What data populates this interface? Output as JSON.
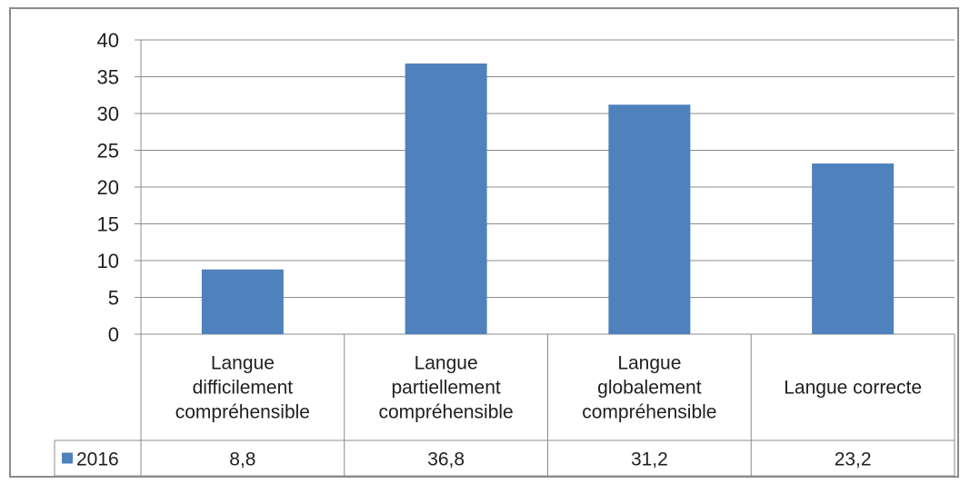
{
  "chart_data": {
    "type": "bar",
    "categories": [
      [
        "Langue",
        "difficilement",
        "compréhensible"
      ],
      [
        "Langue",
        "partiellement",
        "compréhensible"
      ],
      [
        "Langue",
        "globalement",
        "compréhensible"
      ],
      [
        "Langue correcte"
      ]
    ],
    "series": [
      {
        "name": "2016",
        "values": [
          8.8,
          36.8,
          31.2,
          23.2
        ],
        "value_labels": [
          "8,8",
          "36,8",
          "31,2",
          "23,2"
        ],
        "color": "#4f81bd"
      }
    ],
    "yticks": [
      "0",
      "5",
      "10",
      "15",
      "20",
      "25",
      "30",
      "35",
      "40"
    ],
    "ylim": [
      0,
      40
    ],
    "grid": true,
    "data_table": true,
    "legend_placement": "data-table"
  }
}
